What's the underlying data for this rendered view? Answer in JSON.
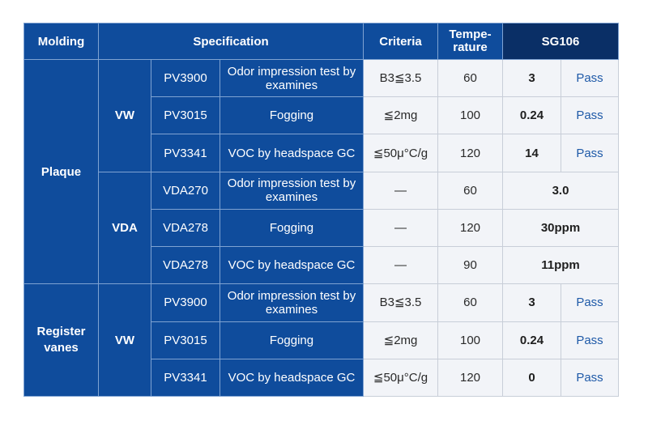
{
  "header": {
    "molding": "Molding",
    "specification": "Specification",
    "criteria": "Criteria",
    "temperature": "Tempe-\nrature",
    "sample": "SG106"
  },
  "groups": {
    "plaque": "Plaque",
    "register_vanes": "Register\nvanes",
    "vw_1": "VW",
    "vda": "VDA",
    "vw_2": "VW"
  },
  "rows": [
    {
      "code": "PV3900",
      "test": "Odor impression test by examines",
      "criteria": "B3≦3.5",
      "temp": "60",
      "value": "3",
      "result": "Pass"
    },
    {
      "code": "PV3015",
      "test": "Fogging",
      "criteria": "≦2mg",
      "temp": "100",
      "value": "0.24",
      "result": "Pass"
    },
    {
      "code": "PV3341",
      "test": "VOC by headspace GC",
      "criteria": "≦50μ°C/g",
      "temp": "120",
      "value": "14",
      "result": "Pass"
    },
    {
      "code": "VDA270",
      "test": "Odor impression test by examines",
      "criteria": "—",
      "temp": "60",
      "value": "3.0"
    },
    {
      "code": "VDA278",
      "test": "Fogging",
      "criteria": "—",
      "temp": "120",
      "value": "30ppm"
    },
    {
      "code": "VDA278",
      "test": "VOC by headspace GC",
      "criteria": "—",
      "temp": "90",
      "value": "11ppm"
    },
    {
      "code": "PV3900",
      "test": "Odor impression test by examines",
      "criteria": "B3≦3.5",
      "temp": "60",
      "value": "3",
      "result": "Pass"
    },
    {
      "code": "PV3015",
      "test": "Fogging",
      "criteria": "≦2mg",
      "temp": "100",
      "value": "0.24",
      "result": "Pass"
    },
    {
      "code": "PV3341",
      "test": "VOC by headspace GC",
      "criteria": "≦50μ°C/g",
      "temp": "120",
      "value": "0",
      "result": "Pass"
    }
  ]
}
